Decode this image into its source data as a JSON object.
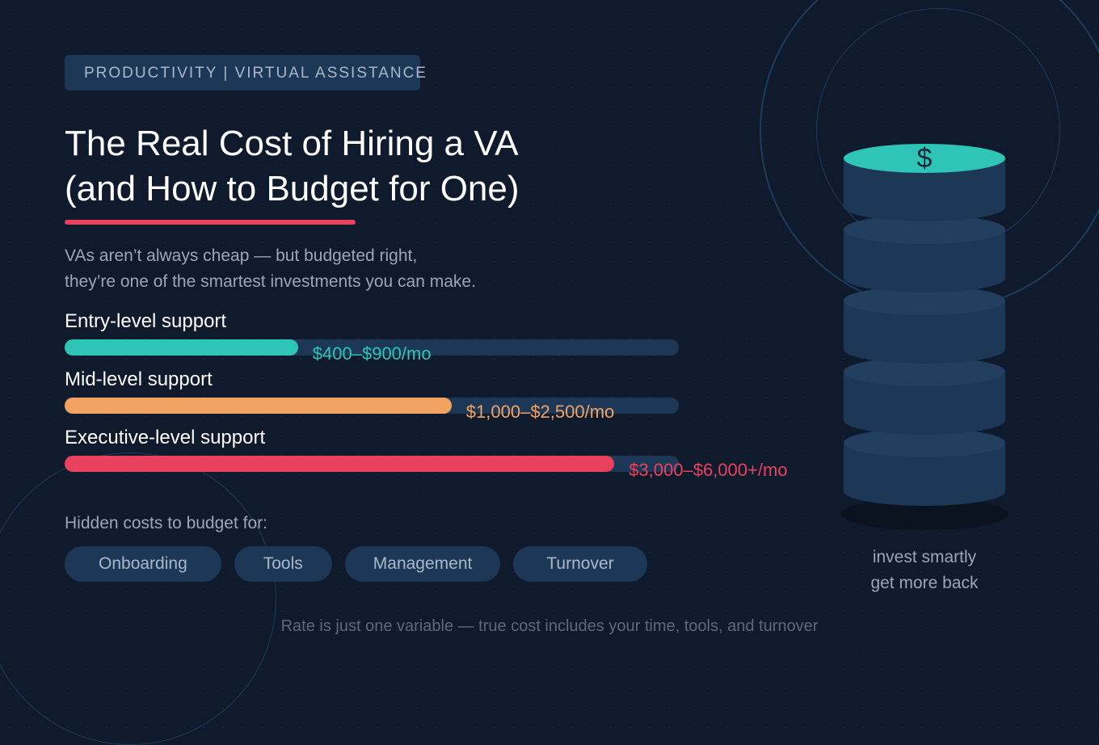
{
  "colors": {
    "background": "#0f1b2c",
    "track": "#1d3856",
    "teal": "#2ec4b6",
    "orange": "#f4a261",
    "red": "#e8425e",
    "muted_text": "#9aa7b6"
  },
  "badge": {
    "text": "PRODUCTIVITY | VIRTUAL ASSISTANCE"
  },
  "title": {
    "line1": "The Real Cost of Hiring a VA",
    "line2": "(and How to Budget for One)"
  },
  "subtitle": {
    "line1": "VAs aren’t always cheap — but budgeted right,",
    "line2": "they’re one of the smartest investments you can make."
  },
  "tiers": [
    {
      "label": "Entry-level support",
      "value": "$400–$900/mo",
      "fill_fraction": 0.38,
      "color": "#2ec4b6"
    },
    {
      "label": "Mid-level support",
      "value": "$1,000–$2,500/mo",
      "fill_fraction": 0.63,
      "color": "#f4a261"
    },
    {
      "label": "Executive-level support",
      "value": "$3,000–$6,000+/mo",
      "fill_fraction": 0.895,
      "color": "#e8425e"
    }
  ],
  "hidden_costs": {
    "label": "Hidden costs to budget for:",
    "chips": [
      "Onboarding",
      "Tools",
      "Management",
      "Turnover"
    ]
  },
  "illustration": {
    "icon": "coin-stack-icon",
    "symbol": "$",
    "caption_line1": "invest smartly",
    "caption_line2": "get more back"
  },
  "footer": {
    "text": "Rate is just one variable — true cost includes your time, tools, and turnover"
  }
}
